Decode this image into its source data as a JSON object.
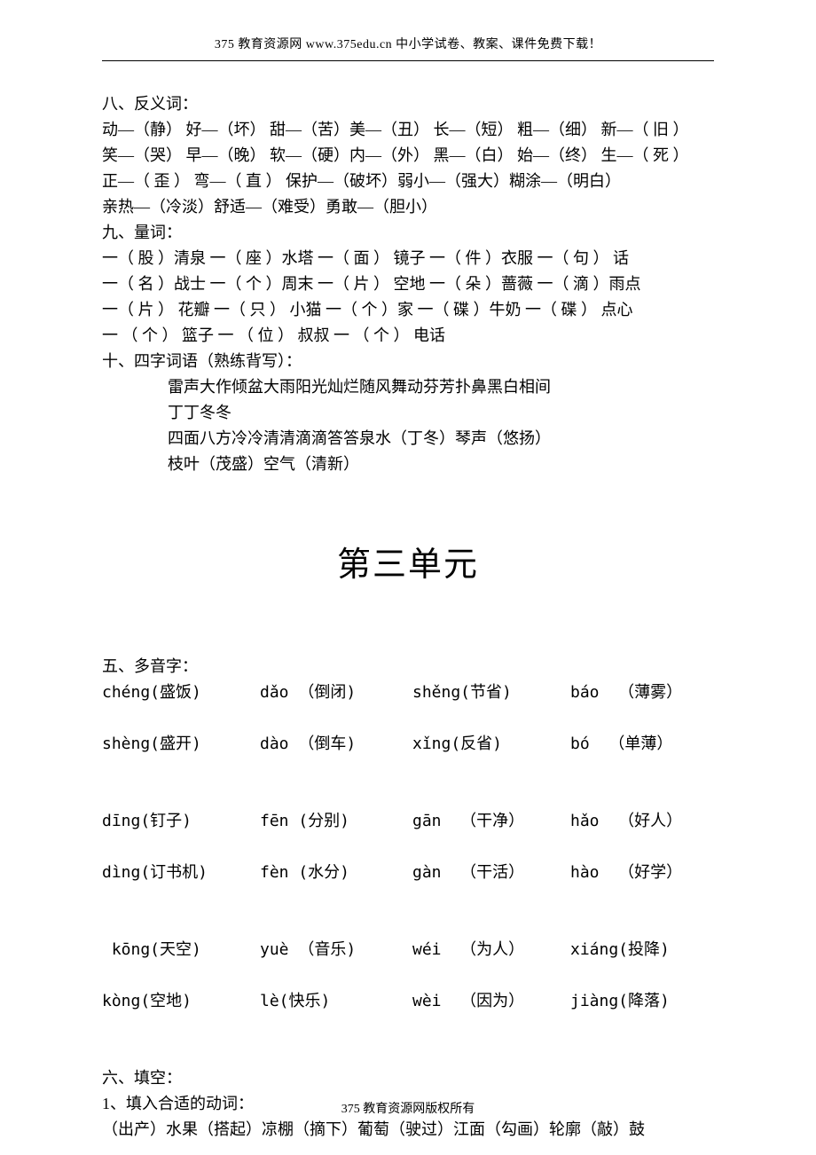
{
  "header": "375 教育资源网 www.375edu.cn 中小学试卷、教案、课件免费下载！",
  "footer": "375 教育资源网版权所有",
  "section8": {
    "title": "八、反义词：",
    "lines": [
      "动—（静）   好—（坏）   甜—（苦）美—（丑）   长—（短）   粗—（细）     新—（ 旧 ）",
      "笑—（哭）   早—（晚）   软—（硬）内—（外）   黑—（白）   始—（终）     生—（ 死 ）",
      "正—（ 歪 ）   弯—（ 直 ）   保护—（破坏）弱小—（强大）糊涂—（明白）",
      "亲热—（冷淡）舒适—（难受）勇敢—（胆小）"
    ]
  },
  "section9": {
    "title": "九、量词：",
    "lines": [
      "一（ 股 ）清泉 一（ 座 ）水塔 一（ 面 ） 镜子 一（ 件 ）衣服 一（ 句 ） 话",
      "一（ 名 ）战士 一（ 个 ）周末 一（ 片 ） 空地 一（ 朵 ）蔷薇 一（ 滴 ）雨点",
      "一（ 片 ） 花瓣 一（ 只 ） 小猫 一（ 个 ）家 一（ 碟 ）牛奶 一（ 碟 ） 点心",
      "一 （ 个 ） 篮子 一 （ 位 ） 叔叔 一 （ 个 ） 电话"
    ]
  },
  "section10": {
    "title": "十、四字词语（熟练背写）：",
    "lines": [
      "雷声大作倾盆大雨阳光灿烂随风舞动芬芳扑鼻黑白相间",
      "丁丁冬冬",
      "四面八方冷冷清清滴滴答答泉水（丁冬）琴声（悠扬）",
      "枝叶（茂盛）空气（清新）"
    ]
  },
  "unit_title": "第三单元",
  "section5": {
    "title": "五、多音字：",
    "rows": [
      {
        "c1": "chéng(盛饭)",
        "c2": "dǎo （倒闭)",
        "c3": "shěng(节省)",
        "c4": "báo  （薄雾）"
      },
      {
        "c1": "shèng(盛开)",
        "c2": "dào （倒车)",
        "c3": "xǐng(反省)",
        "c4": "bó  （单薄）"
      },
      {
        "c1": "dīng(钉子)",
        "c2": "fēn (分别)",
        "c3": "gān  （干净）",
        "c4": "hǎo  （好人）"
      },
      {
        "c1": "dìng(订书机)",
        "c2": "fèn (水分)",
        "c3": "gàn  （干活）",
        "c4": "hào  （好学）"
      },
      {
        "c1": " kōng(天空)",
        "c2": "yuè （音乐)",
        "c3": "wéi  （为人）",
        "c4": "xiáng(投降)"
      },
      {
        "c1": "kòng(空地)",
        "c2": "lè(快乐)",
        "c3": "wèi  （因为）",
        "c4": "jiàng(降落)"
      }
    ]
  },
  "section6": {
    "title": "六、填空：",
    "sub1": "1、填入合适的动词：",
    "line1": "（出产）水果（搭起）凉棚（摘下）葡萄（驶过）江面（勾画）轮廓（敲）鼓"
  }
}
